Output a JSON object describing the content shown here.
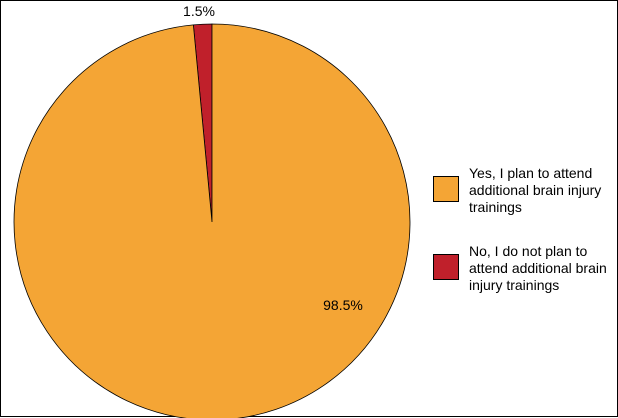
{
  "chart_data": {
    "type": "pie",
    "title": "",
    "categories": [
      "Yes, I plan to attend additional brain injury trainings",
      "No, I do not plan to attend additional brain injury trainings"
    ],
    "values": [
      98.5,
      1.5
    ],
    "data_labels": [
      "98.5%",
      "1.5%"
    ],
    "colors": [
      "#F4A535",
      "#C0202B"
    ],
    "legend_position": "right"
  }
}
